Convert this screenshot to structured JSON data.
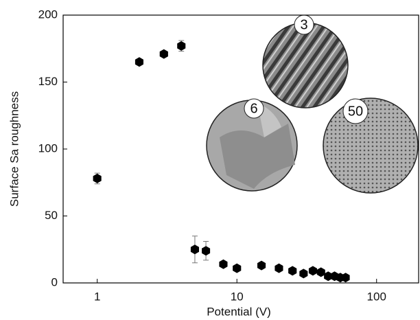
{
  "chart_data": {
    "type": "scatter",
    "x_label": "Potential (V)",
    "y_label": "Surface Sa roughness",
    "x_scale": "log",
    "xlim": [
      0.57,
      200
    ],
    "xticks": [
      1,
      10,
      100
    ],
    "ylim": [
      0,
      200
    ],
    "yticks": [
      0,
      50,
      100,
      150,
      200
    ],
    "color": "#000000",
    "series": [
      {
        "x": [
          1,
          2,
          3,
          4,
          5,
          6,
          8,
          10,
          15,
          20,
          25,
          30,
          35,
          40,
          45,
          50,
          55,
          60
        ],
        "values": [
          78,
          165,
          171,
          177,
          25,
          24,
          14,
          11,
          13,
          11,
          9,
          7,
          9,
          8,
          5,
          5,
          4,
          4
        ],
        "errors": [
          4,
          2,
          2,
          4,
          10,
          7,
          2,
          2,
          2,
          2,
          2,
          2,
          2,
          2,
          1,
          1,
          1,
          1
        ]
      }
    ],
    "insets": [
      {
        "label": "3"
      },
      {
        "label": "6"
      },
      {
        "label": "50"
      }
    ]
  }
}
